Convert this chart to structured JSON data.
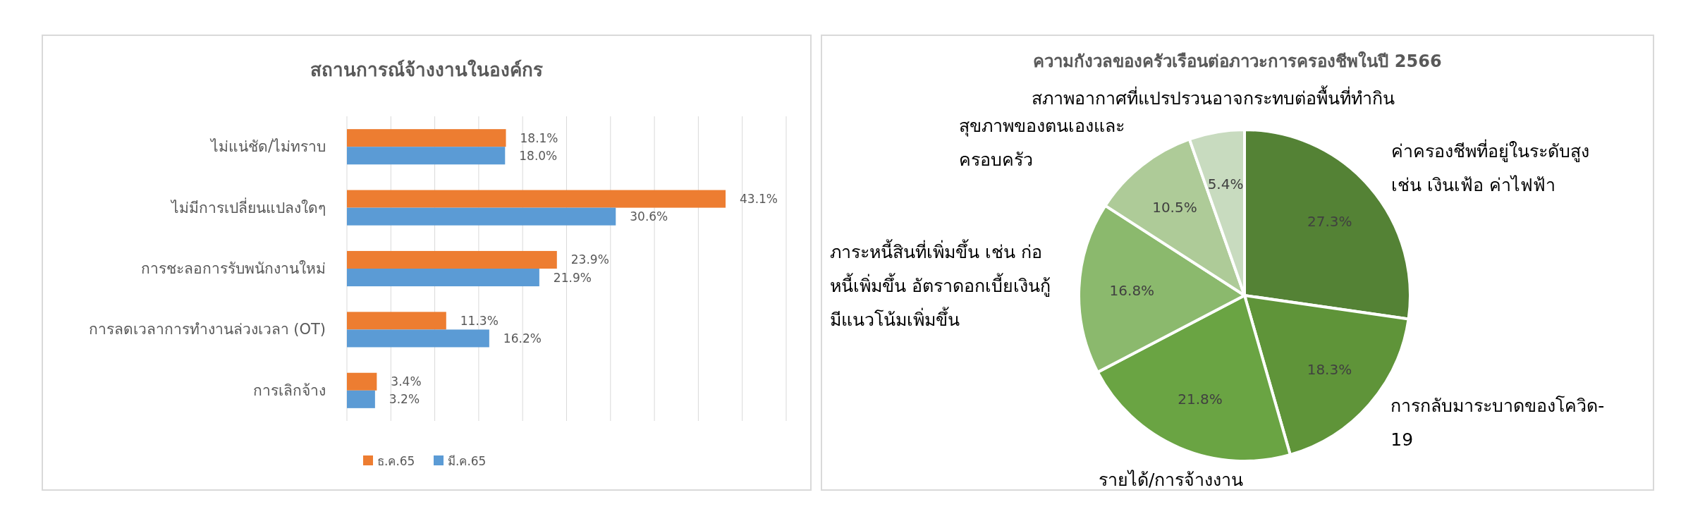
{
  "chart_data": [
    {
      "type": "bar",
      "orientation": "horizontal",
      "title": "สถานการณ์จ้างงานในองค์กร",
      "categories": [
        "ไม่แน่ชัด/ไม่ทราบ",
        "ไม่มีการเปลี่ยนแปลงใดๆ",
        "การชะลอการรับพนักงานใหม่",
        "การลดเวลาการทำงานล่วงเวลา (OT)",
        "การเลิกจ้าง"
      ],
      "series": [
        {
          "name": "ธ.ค.65",
          "color": "#ed7d31",
          "values": [
            18.1,
            43.1,
            23.9,
            11.3,
            3.4
          ],
          "value_labels": [
            "18.1%",
            "43.1%",
            "23.9%",
            "11.3%",
            "3.4%"
          ]
        },
        {
          "name": "มี.ค.65",
          "color": "#5b9bd5",
          "values": [
            18.0,
            30.6,
            21.9,
            16.2,
            3.2
          ],
          "value_labels": [
            "18.0%",
            "30.6%",
            "21.9%",
            "16.2%",
            "3.2%"
          ]
        }
      ],
      "xlim": [
        0,
        50
      ],
      "xticks": [
        {
          "value": 0,
          "label": null
        },
        {
          "value": 5,
          "label": null
        },
        {
          "value": 10,
          "label": null
        },
        {
          "value": 15,
          "label": null
        },
        {
          "value": 20,
          "label": null
        },
        {
          "value": 25,
          "label": null
        },
        {
          "value": 30,
          "label": null
        },
        {
          "value": 35,
          "label": null
        },
        {
          "value": 40,
          "label": null
        },
        {
          "value": 45,
          "label": null
        },
        {
          "value": 50,
          "label": null
        }
      ],
      "grid": "x",
      "legend": "bottom"
    },
    {
      "type": "pie",
      "title": "ความกังวลของครัวเรือนต่อภาวะการครองชีพในปี 2566",
      "categories": [
        "ค่าครองชีพที่อยู่ในระดับสูง เช่น เงินเฟ้อ ค่าไฟฟ้า",
        "การกลับมาระบาดของโควิด-19",
        "รายได้/การจ้างงาน",
        "ภาระหนี้สินที่เพิ่มขึ้น เช่น ก่อหนี้เพิ่มขึ้น อัตราดอกเบี้ยเงินกู้มีแนวโน้มเพิ่มขึ้น",
        "สุขภาพของตนเองและครอบครัว",
        "สภาพอากาศที่แปรปรวนอาจกระทบต่อพื้นที่ทำกิน"
      ],
      "values": [
        27.3,
        18.3,
        21.8,
        16.8,
        10.5,
        5.4
      ],
      "colors": [
        "#548235",
        "#5f9439",
        "#6aa443",
        "#8bb96d",
        "#aecb98",
        "#c8dbbf"
      ],
      "value_labels": [
        "27.3%",
        "18.3%",
        "21.8%",
        "16.8%",
        "10.5%",
        "5.4%"
      ]
    }
  ]
}
